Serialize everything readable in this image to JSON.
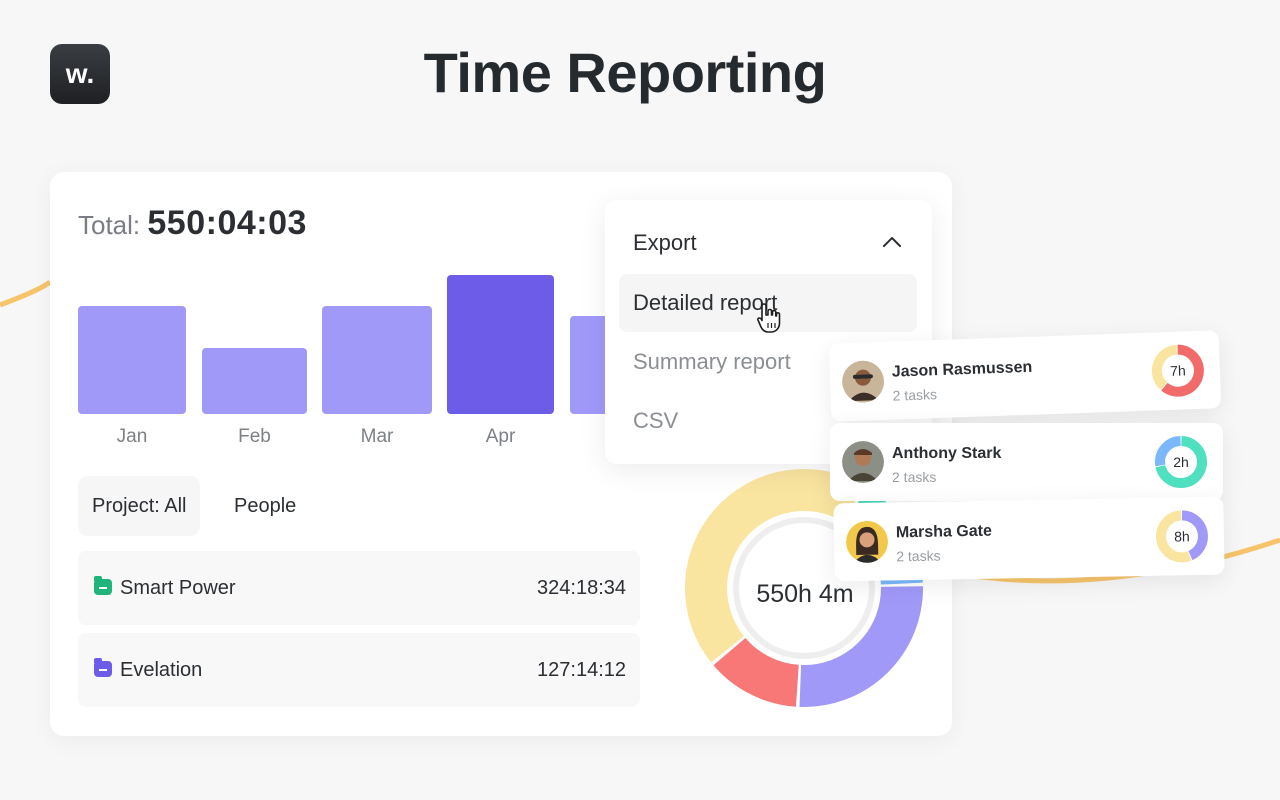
{
  "header": {
    "logo_text": "w.",
    "title": "Time Reporting"
  },
  "colors": {
    "bar": "#a199f8",
    "bar_highlight": "#6c5ce7",
    "smart_power_folder": "#1fb57a",
    "evelation_folder": "#6c5ce7",
    "accent_curve": "#f7c46b"
  },
  "total": {
    "label": "Total:",
    "value": "550:04:03"
  },
  "chart_data": {
    "type": "bar",
    "categories": [
      "Jan",
      "Feb",
      "Mar",
      "Apr"
    ],
    "values": [
      108,
      66,
      108,
      139
    ],
    "highlight": "Apr"
  },
  "filters": {
    "project": "Project: All",
    "people": "People"
  },
  "projects": [
    {
      "name": "Smart Power",
      "time": "324:18:34",
      "icon": "folder-icon"
    },
    {
      "name": "Evelation",
      "time": "127:14:12",
      "icon": "folder-icon"
    }
  ],
  "donut": {
    "label": "550h 4m",
    "segments": [
      {
        "value": 34,
        "color": "#f9e4a0"
      },
      {
        "value": 4,
        "color": "#4fe0c0"
      },
      {
        "value": 8,
        "color": "#7ab8fb"
      },
      {
        "value": 20,
        "color": "#a199f8"
      },
      {
        "value": 10,
        "color": "#f87878"
      }
    ]
  },
  "export_menu": {
    "title": "Export",
    "options": [
      "Detailed report",
      "Summary report",
      "CSV"
    ],
    "selected": "Detailed report"
  },
  "people": [
    {
      "name": "Jason Rasmussen",
      "tasks": "2 tasks",
      "hours": "7h",
      "ring": [
        {
          "v": 62,
          "c": "#f26b6b"
        },
        {
          "v": 38,
          "c": "#f9e4a0"
        }
      ]
    },
    {
      "name": "Anthony Stark",
      "tasks": "2 tasks",
      "hours": "2h",
      "ring": [
        {
          "v": 72,
          "c": "#4fe0c0"
        },
        {
          "v": 28,
          "c": "#7ab8fb"
        }
      ]
    },
    {
      "name": "Marsha Gate",
      "tasks": "2 tasks",
      "hours": "8h",
      "ring": [
        {
          "v": 44,
          "c": "#a199f8"
        },
        {
          "v": 56,
          "c": "#f9e4a0"
        }
      ]
    }
  ]
}
